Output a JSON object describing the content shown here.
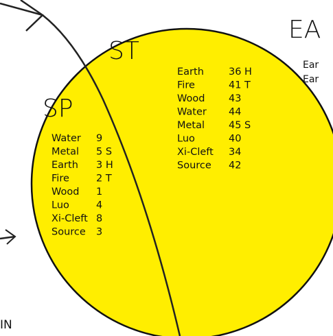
{
  "top_label": "EA",
  "top_sub": [
    "Ear",
    "Ear"
  ],
  "bottom_label": "IN",
  "st": {
    "label": "ST",
    "rows": [
      [
        "Earth",
        "36 H"
      ],
      [
        "Fire",
        "41 T"
      ],
      [
        "Wood",
        "43"
      ],
      [
        "Water",
        "44"
      ],
      [
        "Metal",
        "45 S"
      ],
      [
        "Luo",
        "40"
      ],
      [
        "Xi-Cleft",
        "34"
      ],
      [
        "Source",
        "42"
      ]
    ]
  },
  "sp": {
    "label": "SP",
    "rows": [
      [
        "Water",
        "9"
      ],
      [
        "Metal",
        "5 S"
      ],
      [
        "Earth",
        "3 H"
      ],
      [
        "Fire",
        "2 T"
      ],
      [
        "Wood",
        "1"
      ],
      [
        "Luo",
        "4"
      ],
      [
        "Xi-Cleft",
        "8"
      ],
      [
        "Source",
        "3"
      ]
    ]
  }
}
